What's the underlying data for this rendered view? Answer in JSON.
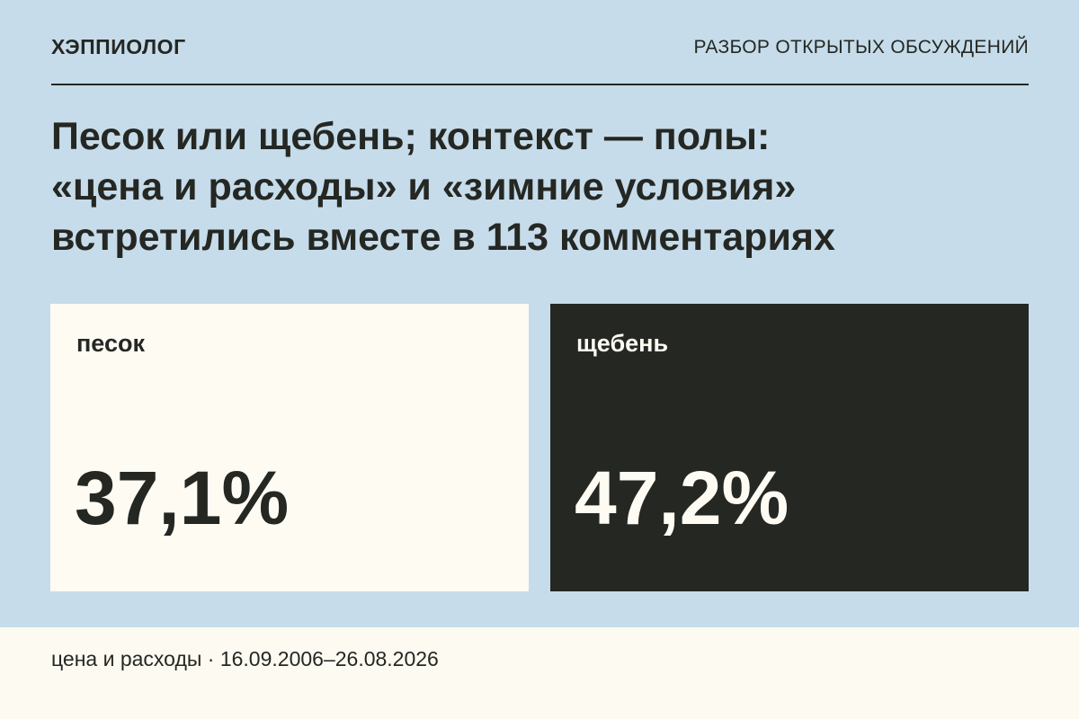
{
  "header": {
    "brand": "ХЭППИОЛОГ",
    "section": "РАЗБОР ОТКРЫТЫХ ОБСУЖДЕНИЙ"
  },
  "headline": {
    "lines": [
      "Песок или щебень; контекст — полы:",
      "«цена и расходы» и «зимние условия»",
      "встретились вместе в 113 комментариях"
    ]
  },
  "cards": [
    {
      "label": "песок",
      "value": "37,1%"
    },
    {
      "label": "щебень",
      "value": "47,2%"
    }
  ],
  "footer": {
    "text": "цена и расходы · 16.09.2006–26.08.2026"
  },
  "colors": {
    "background": "#c6dcea",
    "dark": "#252723",
    "light": "#fefbf3"
  }
}
